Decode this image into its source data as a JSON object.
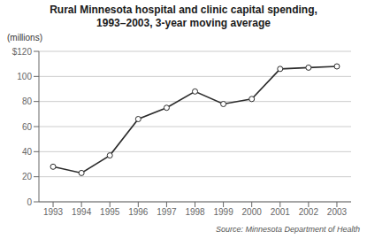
{
  "chart_data": {
    "type": "line",
    "title": "Rural Minnesota hospital and clinic capital spending,",
    "subtitle": "1993–2003, 3-year moving average",
    "ylabel": "(millions)",
    "annotation": "Source: Minnesota Department of Health",
    "x": [
      1993,
      1994,
      1995,
      1996,
      1997,
      1998,
      1999,
      2000,
      2001,
      2002,
      2003
    ],
    "values": [
      28,
      23,
      37,
      66,
      75,
      88,
      78,
      82,
      106,
      107,
      108
    ],
    "color": "#2b2b2b",
    "marker": "circle",
    "xlim": [
      1992.5,
      2003.5
    ],
    "xticks": [
      1993,
      1994,
      1995,
      1996,
      1997,
      1998,
      1999,
      2000,
      2001,
      2002,
      2003
    ],
    "ylim": [
      0,
      120
    ],
    "yticks": [
      0,
      20,
      40,
      60,
      80,
      100,
      {
        "value": 120,
        "label": "$120"
      }
    ],
    "grid": true
  }
}
